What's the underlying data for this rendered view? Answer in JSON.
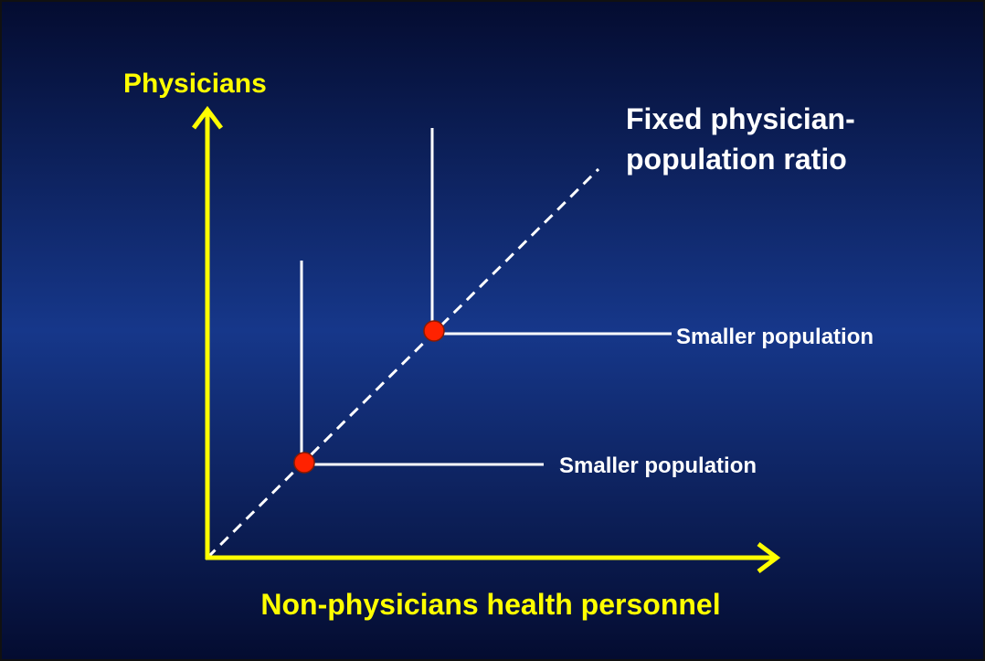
{
  "y_axis_label": "Physicians",
  "x_axis_label": "Non-physicians health personnel",
  "line_label": [
    "Fixed physician-",
    "population ratio"
  ],
  "points": [
    {
      "label": "Smaller population"
    },
    {
      "label": "Smaller population"
    }
  ]
}
